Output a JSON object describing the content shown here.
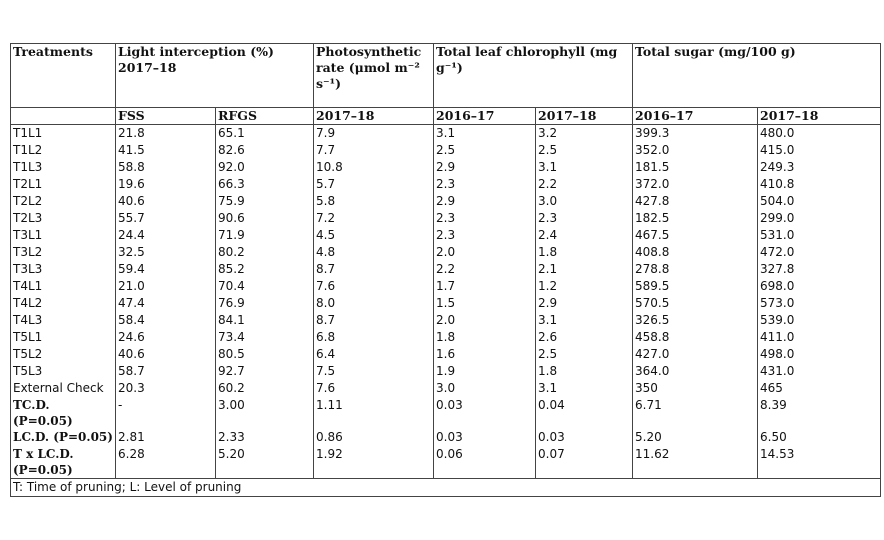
{
  "table": {
    "header": [
      "Treatments",
      "Light interception (%) 2017–18",
      "Photosynthetic rate (μmol m⁻² s⁻¹)",
      "Total leaf chlorophyll (mg g⁻¹)",
      "Total sugar (mg/100 g)"
    ],
    "subheader": [
      "FSS",
      "RFGS",
      "2017–18",
      "2016–17",
      "2017–18",
      "2016–17",
      "2017–18"
    ],
    "rows": [
      [
        "T1L1",
        "21.8",
        "65.1",
        "7.9",
        "3.1",
        "3.2",
        "399.3",
        "480.0"
      ],
      [
        "T1L2",
        "41.5",
        "82.6",
        "7.7",
        "2.5",
        "2.5",
        "352.0",
        "415.0"
      ],
      [
        "T1L3",
        "58.8",
        "92.0",
        "10.8",
        "2.9",
        "3.1",
        "181.5",
        "249.3"
      ],
      [
        "T2L1",
        "19.6",
        "66.3",
        "5.7",
        "2.3",
        "2.2",
        "372.0",
        "410.8"
      ],
      [
        "T2L2",
        "40.6",
        "75.9",
        "5.8",
        "2.9",
        "3.0",
        "427.8",
        "504.0"
      ],
      [
        "T2L3",
        "55.7",
        "90.6",
        "7.2",
        "2.3",
        "2.3",
        "182.5",
        "299.0"
      ],
      [
        "T3L1",
        "24.4",
        "71.9",
        "4.5",
        "2.3",
        "2.4",
        "467.5",
        "531.0"
      ],
      [
        "T3L2",
        "32.5",
        "80.2",
        "4.8",
        "2.0",
        "1.8",
        "408.8",
        "472.0"
      ],
      [
        "T3L3",
        "59.4",
        "85.2",
        "8.7",
        "2.2",
        "2.1",
        "278.8",
        "327.8"
      ],
      [
        "T4L1",
        "21.0",
        "70.4",
        "7.6",
        "1.7",
        "1.2",
        "589.5",
        "698.0"
      ],
      [
        "T4L2",
        "47.4",
        "76.9",
        "8.0",
        "1.5",
        "2.9",
        "570.5",
        "573.0"
      ],
      [
        "T4L3",
        "58.4",
        "84.1",
        "8.7",
        "2.0",
        "3.1",
        "326.5",
        "539.0"
      ],
      [
        "T5L1",
        "24.6",
        "73.4",
        "6.8",
        "1.8",
        "2.6",
        "458.8",
        "411.0"
      ],
      [
        "T5L2",
        "40.6",
        "80.5",
        "6.4",
        "1.6",
        "2.5",
        "427.0",
        "498.0"
      ],
      [
        "T5L3",
        "58.7",
        "92.7",
        "7.5",
        "1.9",
        "1.8",
        "364.0",
        "431.0"
      ],
      [
        "External Check",
        "20.3",
        "60.2",
        "7.6",
        "3.0",
        "3.1",
        "350",
        "465"
      ],
      [
        "TC.D. (P=0.05)",
        "-",
        "3.00",
        "1.11",
        "0.03",
        "0.04",
        "6.71",
        "8.39"
      ],
      [
        "LC.D. (P=0.05)",
        "2.81",
        "2.33",
        "0.86",
        "0.03",
        "0.03",
        "5.20",
        "6.50"
      ],
      [
        "T x LC.D. (P=0.05)",
        "6.28",
        "5.20",
        "1.92",
        "0.06",
        "0.07",
        "11.62",
        "14.53"
      ]
    ],
    "footnote": "T: Time of pruning; L: Level of pruning"
  }
}
